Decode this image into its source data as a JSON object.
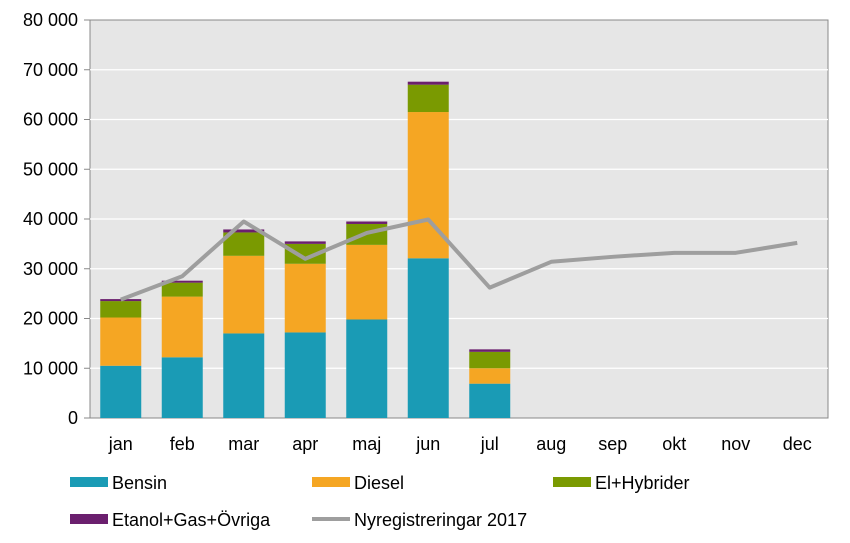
{
  "chart_data": {
    "type": "bar",
    "stacked": true,
    "categories": [
      "jan",
      "feb",
      "mar",
      "apr",
      "maj",
      "jun",
      "jul",
      "aug",
      "sep",
      "okt",
      "nov",
      "dec"
    ],
    "series": [
      {
        "name": "Bensin",
        "type": "bar",
        "color": "#1a9bb5",
        "values": [
          10500,
          12200,
          17000,
          17200,
          19800,
          32100,
          6900,
          null,
          null,
          null,
          null,
          null
        ]
      },
      {
        "name": "Diesel",
        "type": "bar",
        "color": "#f5a623",
        "values": [
          9700,
          12200,
          15600,
          13800,
          15000,
          29400,
          3100,
          null,
          null,
          null,
          null,
          null
        ]
      },
      {
        "name": "El+Hybrider",
        "type": "bar",
        "color": "#7a9a01",
        "values": [
          3300,
          2800,
          4700,
          4000,
          4200,
          5500,
          3300,
          null,
          null,
          null,
          null,
          null
        ]
      },
      {
        "name": "Etanol+Gas+Övriga",
        "type": "bar",
        "color": "#6b1f6e",
        "values": [
          400,
          400,
          600,
          500,
          500,
          600,
          500,
          null,
          null,
          null,
          null,
          null
        ]
      },
      {
        "name": "Nyregistreringar 2017",
        "type": "line",
        "color": "#9e9e9e",
        "values": [
          23800,
          28500,
          39500,
          32000,
          37200,
          39900,
          26200,
          31400,
          32400,
          33200,
          33200,
          35200
        ]
      }
    ],
    "ylim": [
      0,
      80000
    ],
    "yticks": [
      0,
      10000,
      20000,
      30000,
      40000,
      50000,
      60000,
      70000,
      80000
    ],
    "ytick_labels": [
      "0",
      "10 000",
      "20 000",
      "30 000",
      "40 000",
      "50 000",
      "60 000",
      "70 000",
      "80 000"
    ],
    "grid": true,
    "legend_position": "bottom",
    "plot_background": "#e6e6e6"
  }
}
